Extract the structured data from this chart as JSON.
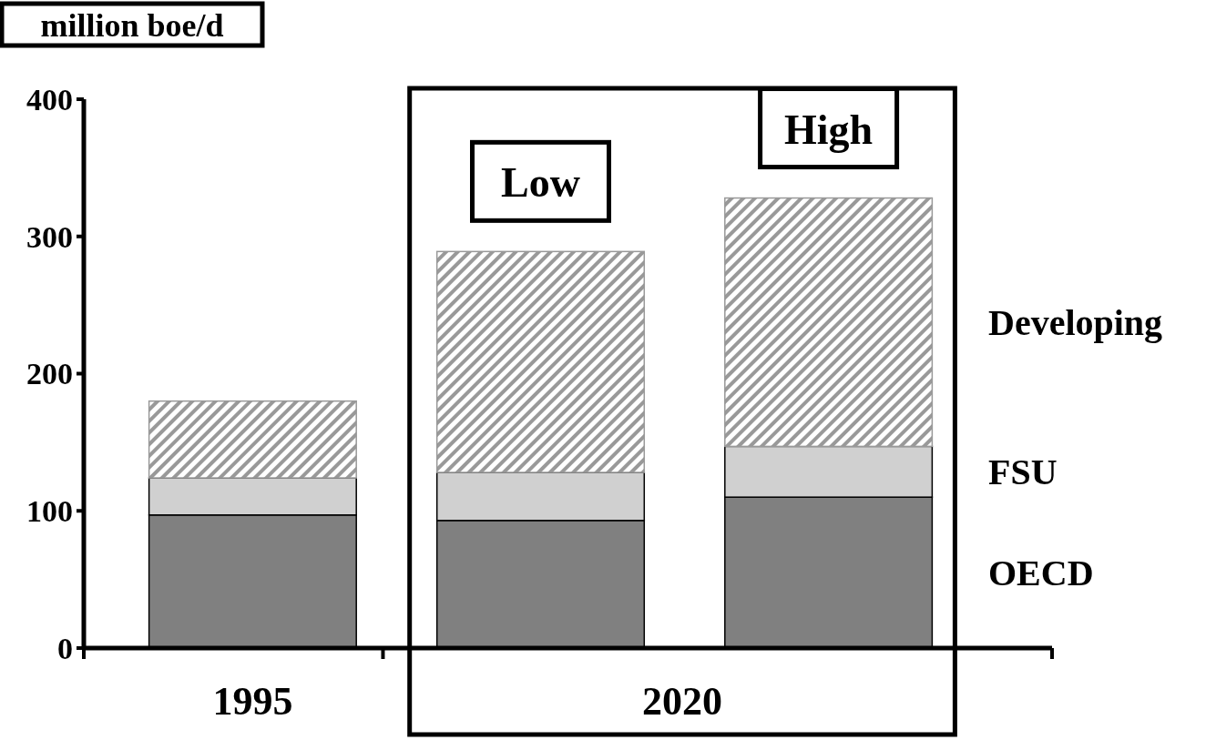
{
  "chart_data": {
    "type": "bar",
    "stacked": true,
    "ylabel": "million boe/d",
    "categories": [
      "1995",
      "Low",
      "High"
    ],
    "series": [
      {
        "name": "OECD",
        "color": "#808080",
        "values": [
          97,
          93,
          110
        ]
      },
      {
        "name": "FSU",
        "color": "#d0d0d0",
        "values": [
          27,
          35,
          37
        ]
      },
      {
        "name": "Developing",
        "color": "#999999",
        "values": [
          56,
          161,
          181
        ]
      }
    ],
    "ylim": [
      0,
      400
    ],
    "yticks": [
      0,
      100,
      200,
      300,
      400
    ],
    "grid": false,
    "legend": "right",
    "annotations": [
      "2020"
    ]
  }
}
